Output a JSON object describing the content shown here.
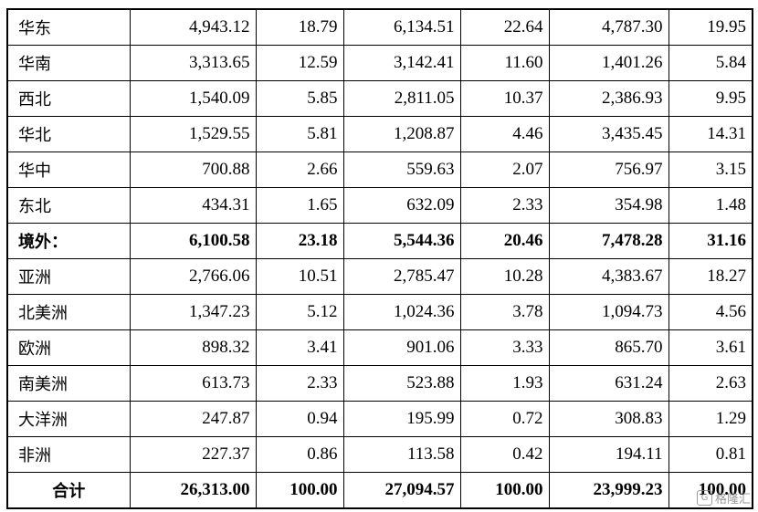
{
  "rows": [
    {
      "region": "华东",
      "v": [
        "4,943.12",
        "18.79",
        "6,134.51",
        "22.64",
        "4,787.30",
        "19.95"
      ],
      "bold": false
    },
    {
      "region": "华南",
      "v": [
        "3,313.65",
        "12.59",
        "3,142.41",
        "11.60",
        "1,401.26",
        "5.84"
      ],
      "bold": false
    },
    {
      "region": "西北",
      "v": [
        "1,540.09",
        "5.85",
        "2,811.05",
        "10.37",
        "2,386.93",
        "9.95"
      ],
      "bold": false
    },
    {
      "region": "华北",
      "v": [
        "1,529.55",
        "5.81",
        "1,208.87",
        "4.46",
        "3,435.45",
        "14.31"
      ],
      "bold": false
    },
    {
      "region": "华中",
      "v": [
        "700.88",
        "2.66",
        "559.63",
        "2.07",
        "756.97",
        "3.15"
      ],
      "bold": false
    },
    {
      "region": "东北",
      "v": [
        "434.31",
        "1.65",
        "632.09",
        "2.33",
        "354.98",
        "1.48"
      ],
      "bold": false
    },
    {
      "region": "境外：",
      "v": [
        "6,100.58",
        "23.18",
        "5,544.36",
        "20.46",
        "7,478.28",
        "31.16"
      ],
      "bold": true
    },
    {
      "region": "亚洲",
      "v": [
        "2,766.06",
        "10.51",
        "2,785.47",
        "10.28",
        "4,383.67",
        "18.27"
      ],
      "bold": false
    },
    {
      "region": "北美洲",
      "v": [
        "1,347.23",
        "5.12",
        "1,024.36",
        "3.78",
        "1,094.73",
        "4.56"
      ],
      "bold": false
    },
    {
      "region": "欧洲",
      "v": [
        "898.32",
        "3.41",
        "901.06",
        "3.33",
        "865.70",
        "3.61"
      ],
      "bold": false
    },
    {
      "region": "南美洲",
      "v": [
        "613.73",
        "2.33",
        "523.88",
        "1.93",
        "631.24",
        "2.63"
      ],
      "bold": false
    },
    {
      "region": "大洋洲",
      "v": [
        "247.87",
        "0.94",
        "195.99",
        "0.72",
        "308.83",
        "1.29"
      ],
      "bold": false
    },
    {
      "region": "非洲",
      "v": [
        "227.37",
        "0.86",
        "113.58",
        "0.42",
        "194.11",
        "0.81"
      ],
      "bold": false
    },
    {
      "region": "合计",
      "v": [
        "26,313.00",
        "100.00",
        "27,094.57",
        "100.00",
        "23,999.23",
        "100.00"
      ],
      "bold": true,
      "total": true
    }
  ],
  "watermark": {
    "mark": "G",
    "text": "格隆汇"
  }
}
